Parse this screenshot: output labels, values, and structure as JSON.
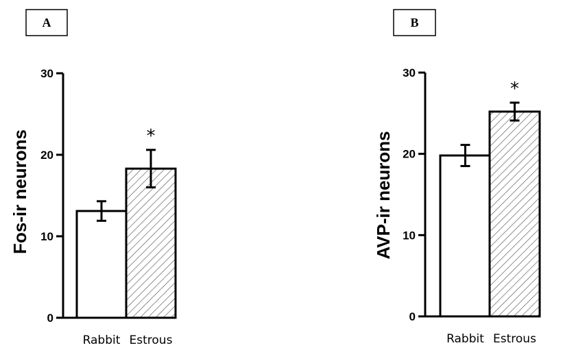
{
  "chart_data": [
    {
      "type": "bar",
      "panel": "A",
      "categories": [
        "Rabbit",
        "Estrous"
      ],
      "values": [
        13.1,
        18.3
      ],
      "errors": [
        1.2,
        2.3
      ],
      "significance": [
        "",
        "*"
      ],
      "ylabel": "Fos-ir neurons",
      "ylim": [
        0,
        30
      ],
      "yticks": [
        0,
        10,
        20,
        30
      ],
      "bar_fills": [
        "solid-white",
        "diagonal-hatch"
      ],
      "grid": false
    },
    {
      "type": "bar",
      "panel": "B",
      "categories": [
        "Rabbit",
        "Estrous"
      ],
      "values": [
        19.8,
        25.2
      ],
      "errors": [
        1.3,
        1.1
      ],
      "significance": [
        "",
        "*"
      ],
      "ylabel": "AVP-ir neurons",
      "ylim": [
        0,
        30
      ],
      "yticks": [
        0,
        10,
        20,
        30
      ],
      "bar_fills": [
        "solid-white",
        "diagonal-hatch"
      ],
      "grid": false
    }
  ]
}
